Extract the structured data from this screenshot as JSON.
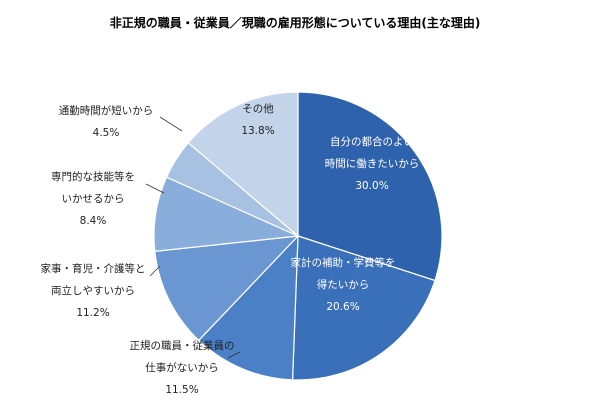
{
  "chart_data": {
    "type": "pie",
    "title": "非正規の職員・従業員／現職の雇用形態についている理由(主な理由)",
    "slices": [
      {
        "label_lines": [
          "自分の都合のよい",
          "時間に働きたいから"
        ],
        "value_text": "30.0%",
        "value": 30.0,
        "color": "#2E62AD"
      },
      {
        "label_lines": [
          "家計の補助・学費等を",
          "得たいから"
        ],
        "value_text": "20.6%",
        "value": 20.6,
        "color": "#3A6FB9"
      },
      {
        "label_lines": [
          "正規の職員・従業員の",
          "仕事がないから"
        ],
        "value_text": "11.5%",
        "value": 11.5,
        "color": "#4B80C6"
      },
      {
        "label_lines": [
          "家事・育児・介護等と",
          "両立しやすいから"
        ],
        "value_text": "11.2%",
        "value": 11.2,
        "color": "#6A97D2"
      },
      {
        "label_lines": [
          "専門的な技能等を",
          "いかせるから"
        ],
        "value_text": "8.4%",
        "value": 8.4,
        "color": "#8AAEDB"
      },
      {
        "label_lines": [
          "通勤時間が短いから"
        ],
        "value_text": "4.5%",
        "value": 4.5,
        "color": "#A7C1E2"
      },
      {
        "label_lines": [
          "その他"
        ],
        "value_text": "13.8%",
        "value": 13.8,
        "color": "#C3D3EA"
      }
    ]
  }
}
